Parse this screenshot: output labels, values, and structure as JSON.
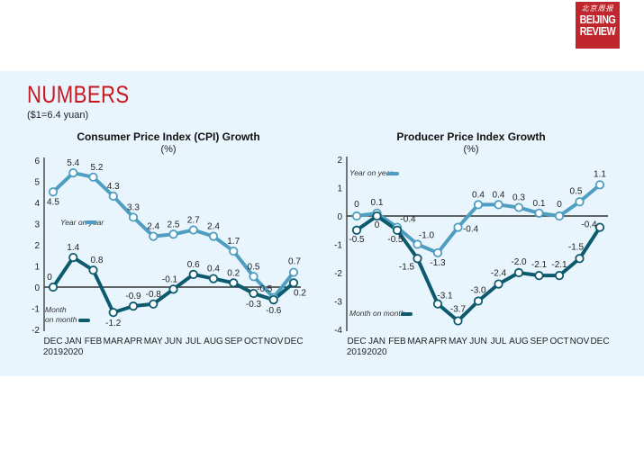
{
  "brand": {
    "chinese_name": "北京周报",
    "line1": "BEIJING",
    "line2": "REVIEW",
    "color": "#c0262d"
  },
  "header": {
    "title": "NUMBERS",
    "subtitle": "($1=6.4 yuan)",
    "title_color": "#c8181f",
    "panel_color": "#e9f5fd"
  },
  "colors": {
    "year_on_year": "#4f9ec2",
    "month_on_month": "#0d5a6e",
    "zero_line": "#333333"
  },
  "chart_data": [
    {
      "type": "line",
      "title": "Consumer Price Index (CPI) Growth",
      "unit": "(%)",
      "categories": [
        "DEC",
        "JAN",
        "FEB",
        "MAR",
        "APR",
        "MAY",
        "JUN",
        "JUL",
        "AUG",
        "SEP",
        "OCT",
        "NOV",
        "DEC"
      ],
      "category_years": [
        "2019",
        "2020",
        "",
        "",
        "",
        "",
        "",
        "",
        "",
        "",
        "",
        "",
        ""
      ],
      "ylim": [
        -2,
        6
      ],
      "yticks": [
        "6",
        "5",
        "4",
        "3",
        "2",
        "1",
        "0",
        "-1",
        "-2"
      ],
      "ytick_values": [
        6,
        5,
        4,
        3,
        2,
        1,
        0,
        -1,
        -2
      ],
      "grid": false,
      "series": [
        {
          "name": "Year on year",
          "values": [
            4.5,
            5.4,
            5.2,
            4.3,
            3.3,
            2.4,
            2.5,
            2.7,
            2.4,
            1.7,
            0.5,
            -0.5,
            0.7
          ],
          "labels": [
            "4.5",
            "5.4",
            "5.2",
            "4.3",
            "3.3",
            "2.4",
            "2.5",
            "2.7",
            "2.4",
            "1.7",
            "0.5",
            "-0.5",
            "0.7"
          ]
        },
        {
          "name": "Month on month",
          "legend_line1": "Month",
          "legend_line2": "on month",
          "values": [
            0,
            1.4,
            0.8,
            -1.2,
            -0.9,
            -0.8,
            -0.1,
            0.6,
            0.4,
            0.2,
            -0.3,
            -0.6,
            0.2
          ],
          "labels": [
            "0",
            "1.4",
            "0.8",
            "-1.2",
            "-0.9",
            "-0.8",
            "-0.1",
            "0.6",
            "0.4",
            "0.2",
            "-0.3",
            "-0.6",
            "0.2"
          ]
        }
      ]
    },
    {
      "type": "line",
      "title": "Producer Price Index Growth",
      "unit": "(%)",
      "categories": [
        "DEC",
        "JAN",
        "FEB",
        "MAR",
        "APR",
        "MAY",
        "JUN",
        "JUL",
        "AUG",
        "SEP",
        "OCT",
        "NOV",
        "DEC"
      ],
      "category_years": [
        "2019",
        "2020",
        "",
        "",
        "",
        "",
        "",
        "",
        "",
        "",
        "",
        "",
        ""
      ],
      "ylim": [
        -4,
        2
      ],
      "yticks": [
        "2",
        "1",
        "0",
        "-1",
        "-2",
        "-3",
        "-4"
      ],
      "ytick_values": [
        2,
        1,
        0,
        -1,
        -2,
        -3,
        -4
      ],
      "grid": false,
      "series": [
        {
          "name": "Year on year",
          "values": [
            0,
            0.1,
            -0.4,
            -1.0,
            -1.3,
            -0.4,
            0.4,
            0.4,
            0.3,
            0.1,
            0,
            0.5,
            1.1
          ],
          "labels": [
            "0",
            "0.1",
            "-0.4",
            "-1.0",
            "-1.3",
            "-0.4",
            "0.4",
            "0.4",
            "0.3",
            "0.1",
            "0",
            "0.5",
            "1.1"
          ]
        },
        {
          "name": "Month on month",
          "values": [
            -0.5,
            0,
            -0.5,
            -1.5,
            -3.1,
            -3.7,
            -3.0,
            -2.4,
            -2.0,
            -2.1,
            -2.1,
            -1.5,
            -0.4
          ],
          "labels": [
            "-0.5",
            "0",
            "-0.5",
            "-1.5",
            "-3.1",
            "-3.7",
            "-3.0",
            "-2.4",
            "-2.0",
            "-2.1",
            "-2.1",
            "-1.5",
            "-0.4"
          ]
        }
      ]
    }
  ]
}
